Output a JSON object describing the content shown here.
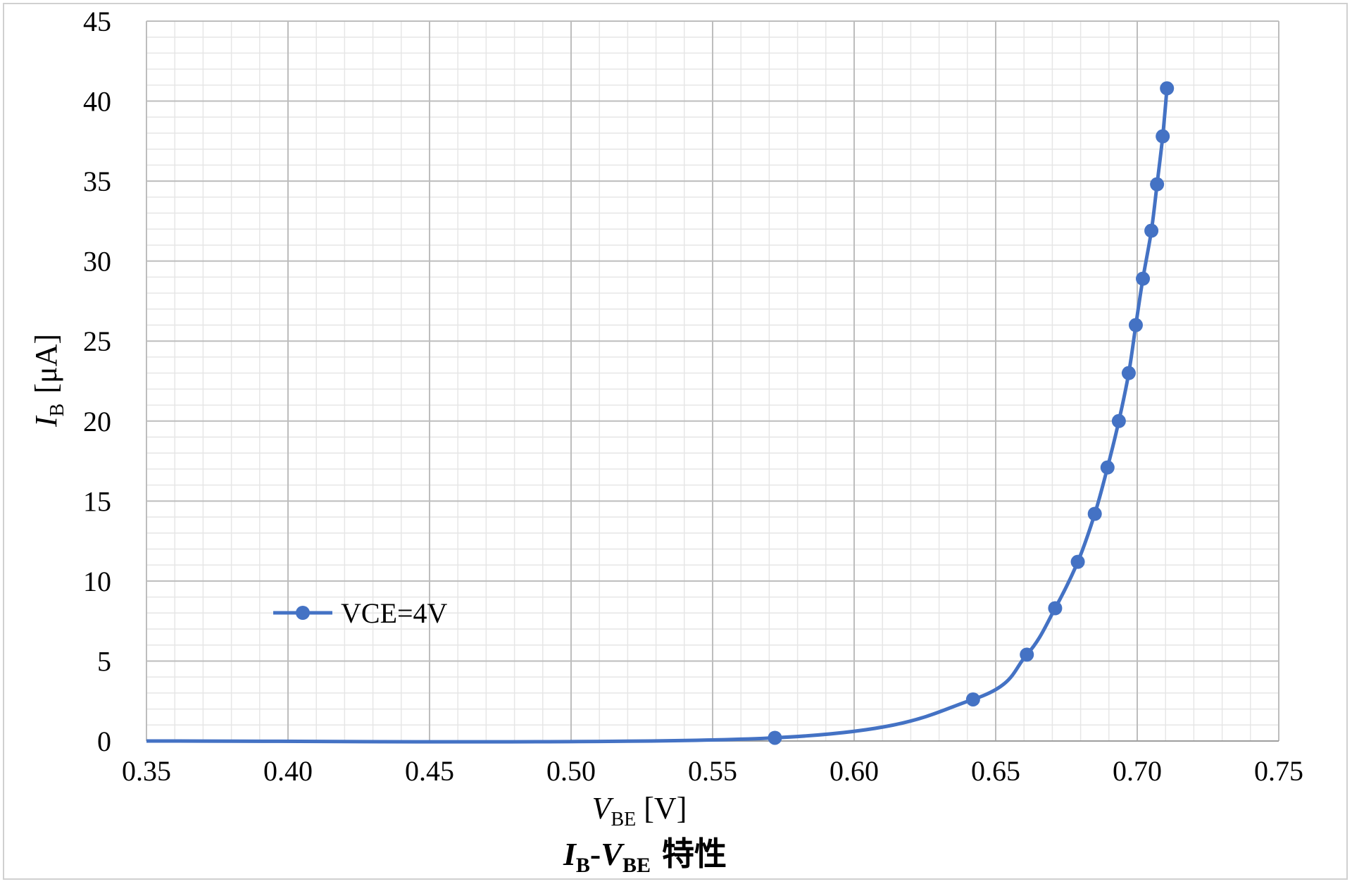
{
  "chart_data": {
    "type": "line",
    "title": {
      "main_italic_1": "I",
      "sub_1": "B",
      "dash": "-",
      "main_italic_2": "V",
      "sub_2": "BE",
      "suffix": " 特性"
    },
    "xlabel": {
      "main": "V",
      "sub": "BE",
      "unit": " [V]"
    },
    "ylabel": {
      "main": "I",
      "sub": "B",
      "unit": "[μA]"
    },
    "xlim": [
      0.35,
      0.75
    ],
    "ylim": [
      0,
      45
    ],
    "x_ticks": [
      "0.35",
      "0.40",
      "0.45",
      "0.50",
      "0.55",
      "0.60",
      "0.65",
      "0.70",
      "0.75"
    ],
    "y_ticks": [
      "0",
      "5",
      "10",
      "15",
      "20",
      "25",
      "30",
      "35",
      "40",
      "45"
    ],
    "grid": true,
    "legend": "center-left",
    "series": [
      {
        "name": "VCE=4V",
        "color": "#4472c4",
        "x": [
          0.35,
          0.572,
          0.642,
          0.661,
          0.671,
          0.679,
          0.685,
          0.6895,
          0.6935,
          0.697,
          0.6995,
          0.702,
          0.705,
          0.707,
          0.709,
          0.7105
        ],
        "y": [
          0.0,
          0.2,
          2.6,
          5.4,
          8.3,
          11.2,
          14.2,
          17.1,
          20.0,
          23.0,
          26.0,
          28.9,
          31.9,
          34.8,
          37.8,
          40.8
        ]
      }
    ]
  }
}
